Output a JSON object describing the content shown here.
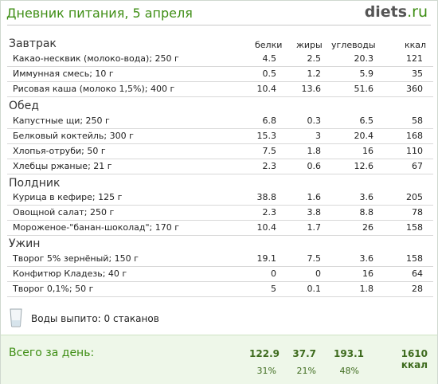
{
  "header": {
    "title": "Дневник питания, 5 апреля",
    "logo_main": "diets",
    "logo_tld": ".ru"
  },
  "columns": {
    "protein": "белки",
    "fat": "жиры",
    "carbs": "углеводы",
    "kcal": "ккал"
  },
  "meals": [
    {
      "name": "Завтрак",
      "items": [
        {
          "name": "Какао-несквик (молоко-вода); 250 г",
          "protein": "4.5",
          "fat": "2.5",
          "carbs": "20.3",
          "kcal": "121"
        },
        {
          "name": "Иммунная смесь; 10 г",
          "protein": "0.5",
          "fat": "1.2",
          "carbs": "5.9",
          "kcal": "35"
        },
        {
          "name": "Рисовая каша (молоко 1,5%); 400 г",
          "protein": "10.4",
          "fat": "13.6",
          "carbs": "51.6",
          "kcal": "360"
        }
      ]
    },
    {
      "name": "Обед",
      "items": [
        {
          "name": "Капустные щи; 250 г",
          "protein": "6.8",
          "fat": "0.3",
          "carbs": "6.5",
          "kcal": "58"
        },
        {
          "name": "Белковый коктейль; 300 г",
          "protein": "15.3",
          "fat": "3",
          "carbs": "20.4",
          "kcal": "168"
        },
        {
          "name": "Хлопья-отруби; 50 г",
          "protein": "7.5",
          "fat": "1.8",
          "carbs": "16",
          "kcal": "110"
        },
        {
          "name": "Хлебцы ржаные; 21 г",
          "protein": "2.3",
          "fat": "0.6",
          "carbs": "12.6",
          "kcal": "67"
        }
      ]
    },
    {
      "name": "Полдник",
      "items": [
        {
          "name": "Курица в кефире; 125 г",
          "protein": "38.8",
          "fat": "1.6",
          "carbs": "3.6",
          "kcal": "205"
        },
        {
          "name": "Овощной салат; 250 г",
          "protein": "2.3",
          "fat": "3.8",
          "carbs": "8.8",
          "kcal": "78"
        },
        {
          "name": "Мороженое-\"банан-шоколад\"; 170 г",
          "protein": "10.4",
          "fat": "1.7",
          "carbs": "26",
          "kcal": "158"
        }
      ]
    },
    {
      "name": "Ужин",
      "items": [
        {
          "name": "Творог 5% зернёный; 150 г",
          "protein": "19.1",
          "fat": "7.5",
          "carbs": "3.6",
          "kcal": "158"
        },
        {
          "name": "Конфитюр Кладезь; 40 г",
          "protein": "0",
          "fat": "0",
          "carbs": "16",
          "kcal": "64"
        },
        {
          "name": "Творог 0,1%; 50 г",
          "protein": "5",
          "fat": "0.1",
          "carbs": "1.8",
          "kcal": "28"
        }
      ]
    }
  ],
  "water": {
    "label": "Воды выпито: 0 стаканов",
    "icon": "glass-icon"
  },
  "total": {
    "label": "Всего за день:",
    "protein": "122.9",
    "fat": "37.7",
    "carbs": "193.1",
    "kcal": "1610 ккал",
    "protein_pct": "31%",
    "fat_pct": "21%",
    "carbs_pct": "48%"
  }
}
